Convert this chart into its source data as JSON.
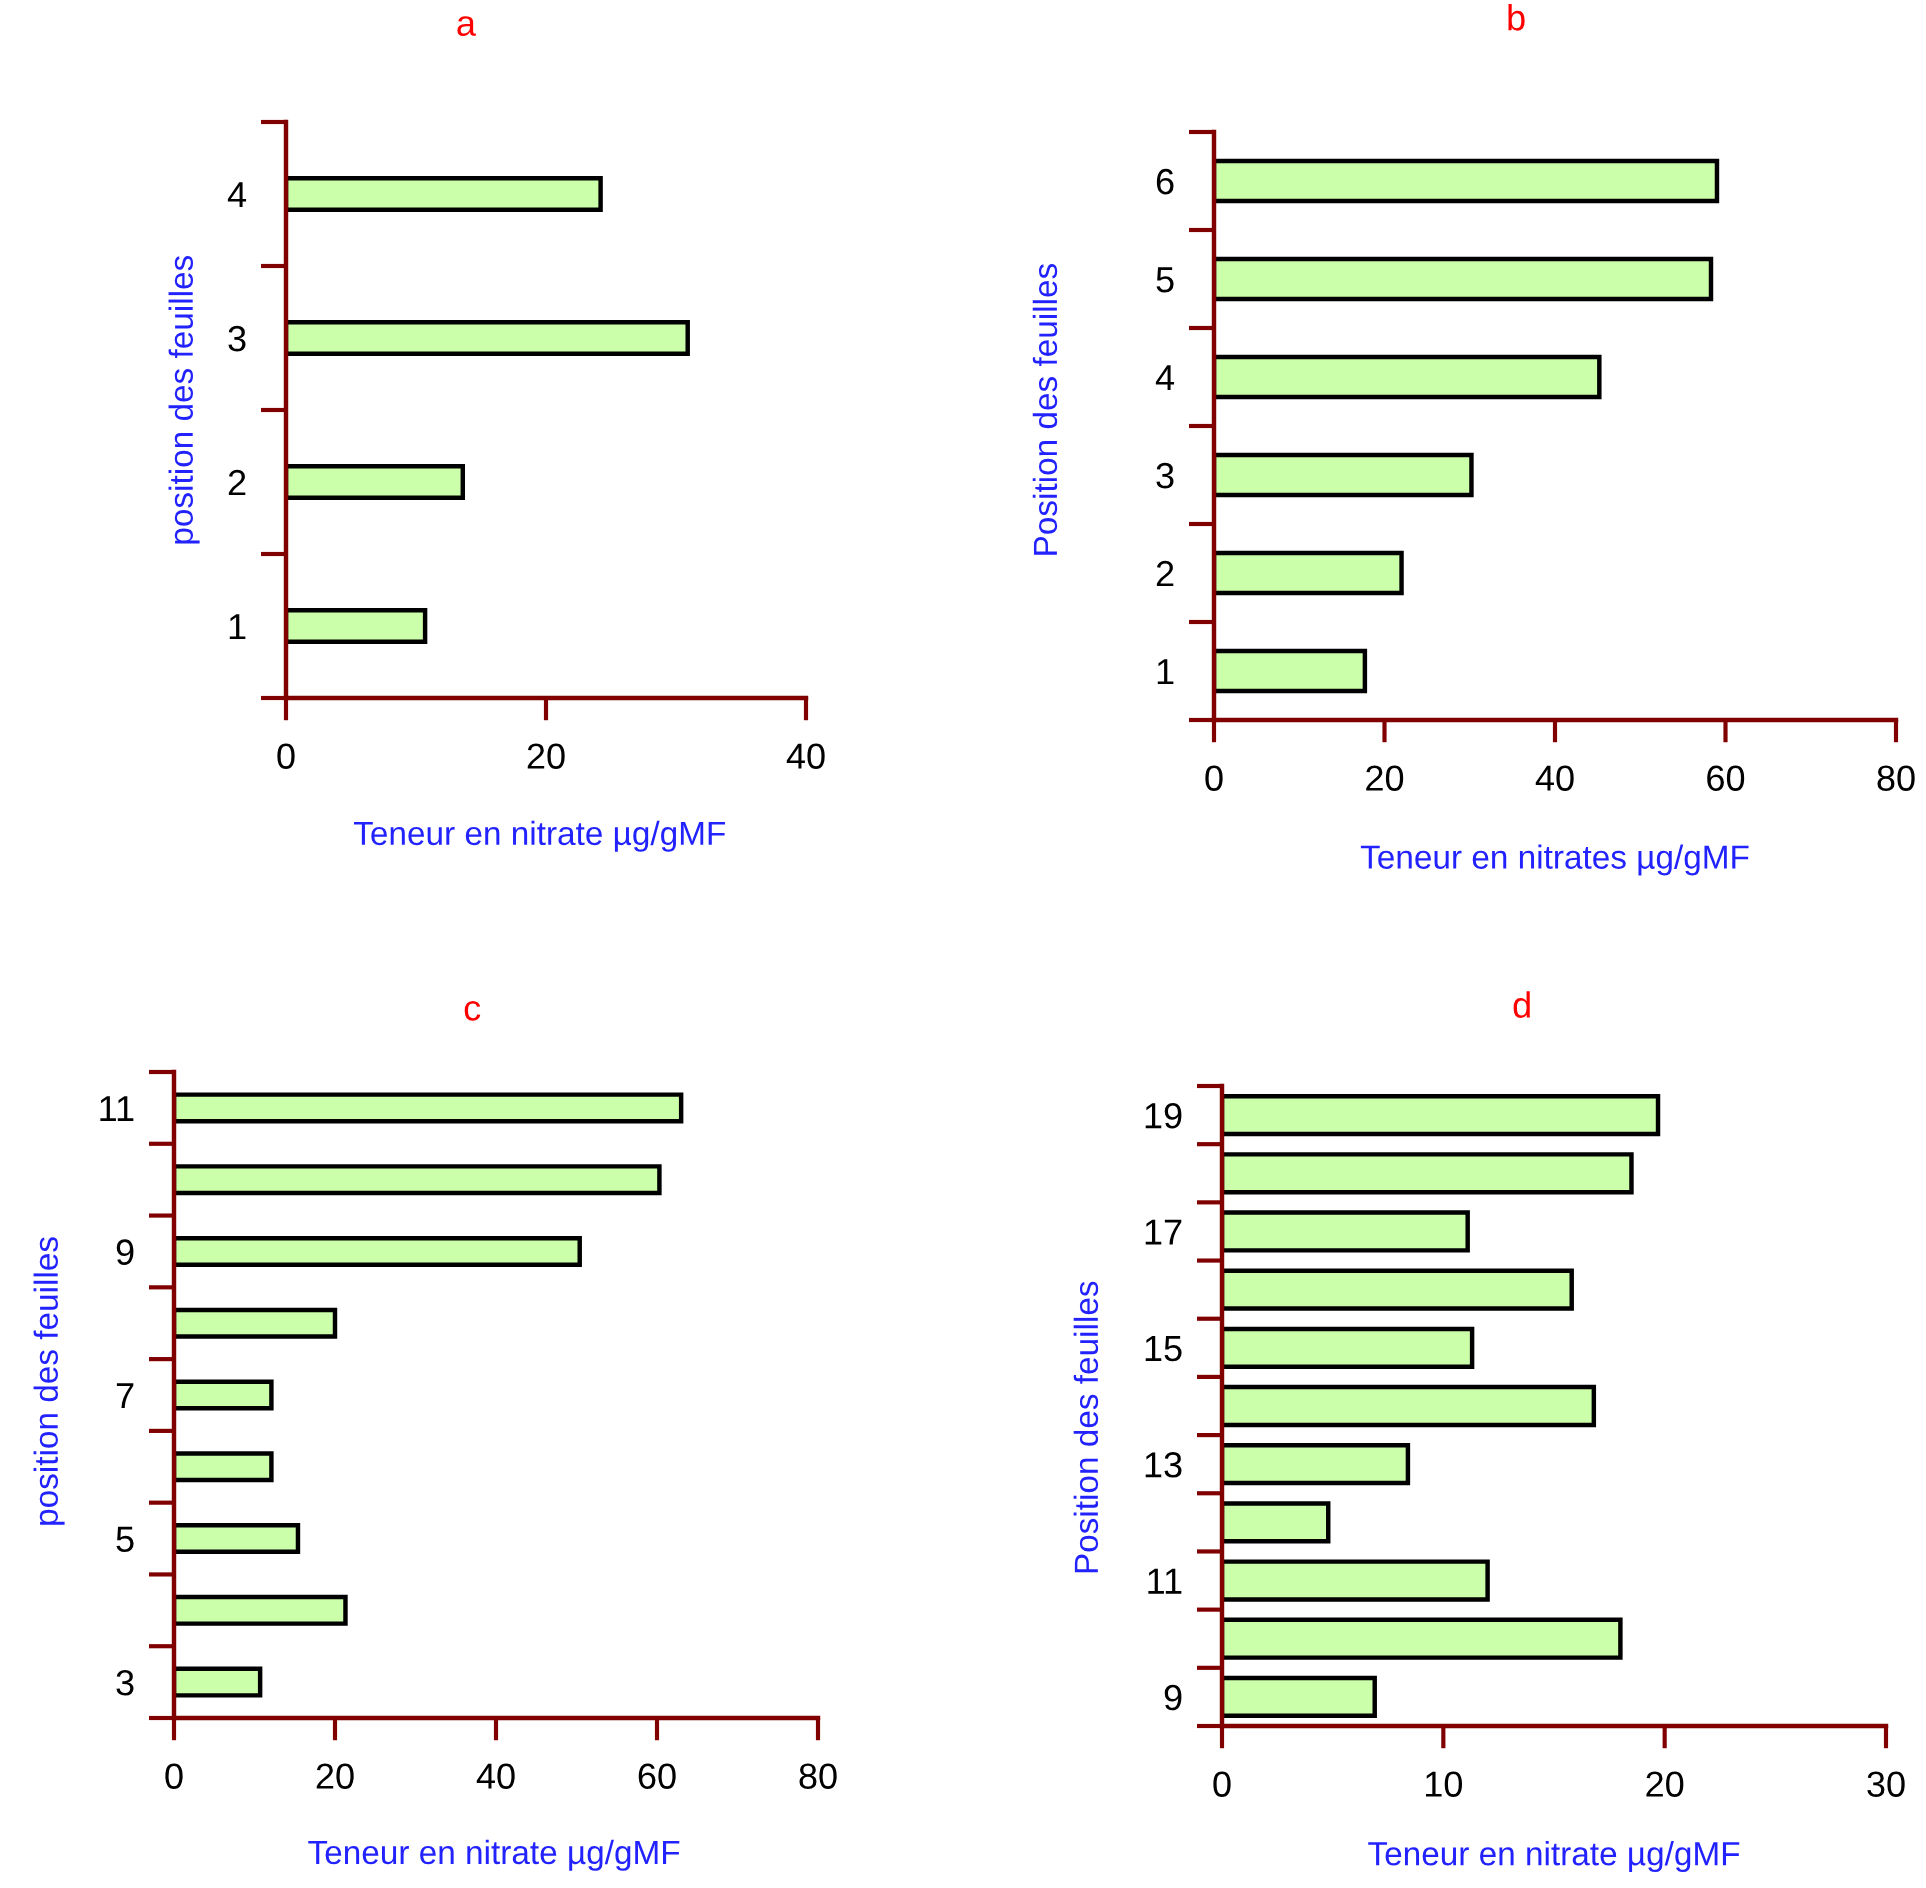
{
  "chart_data": [
    {
      "type": "bar",
      "orientation": "horizontal",
      "title": "a",
      "xlabel": "Teneur en nitrate µg/gMF",
      "ylabel": "position des feuilles",
      "categories": [
        "4",
        "3",
        "2",
        "1"
      ],
      "values": [
        24.2,
        30.9,
        13.6,
        10.7
      ],
      "color": "#ccffaa",
      "xlim": [
        0,
        40
      ],
      "xticks": [
        0,
        20,
        40
      ],
      "grid": false,
      "legend": false
    },
    {
      "type": "bar",
      "orientation": "horizontal",
      "title": "b",
      "xlabel": "Teneur en nitrates µg/gMF",
      "ylabel": "Position des feuilles",
      "categories": [
        "6",
        "5",
        "4",
        "3",
        "2",
        "1"
      ],
      "values": [
        59.0,
        58.3,
        45.2,
        30.2,
        22.0,
        17.7
      ],
      "color": "#ccffaa",
      "xlim": [
        0,
        80
      ],
      "xticks": [
        0,
        20,
        40,
        60,
        80
      ],
      "grid": false,
      "legend": false
    },
    {
      "type": "bar",
      "orientation": "horizontal",
      "title": "c",
      "xlabel": "Teneur en nitrate µg/gMF",
      "ylabel": "position des feuilles",
      "categories": [
        "11",
        null,
        "9",
        null,
        "7",
        null,
        "5",
        null,
        "3"
      ],
      "values": [
        63.0,
        60.3,
        50.4,
        20.0,
        12.1,
        12.1,
        15.4,
        21.3,
        10.7
      ],
      "color": "#ccffaa",
      "xlim": [
        0,
        80
      ],
      "xticks": [
        0,
        20,
        40,
        60,
        80
      ],
      "grid": false,
      "legend": false
    },
    {
      "type": "bar",
      "orientation": "horizontal",
      "title": "d",
      "xlabel": "Teneur en nitrate µg/gMF",
      "ylabel": "Position des feuilles",
      "categories": [
        "19",
        null,
        "17",
        null,
        "15",
        null,
        "13",
        null,
        "11",
        null,
        "9"
      ],
      "values": [
        19.7,
        18.5,
        11.1,
        15.8,
        11.3,
        16.8,
        8.4,
        4.8,
        12.0,
        18.0,
        6.9
      ],
      "color": "#ccffaa",
      "xlim": [
        0,
        30
      ],
      "xticks": [
        0,
        10,
        20,
        30
      ],
      "grid": false,
      "legend": false
    }
  ]
}
